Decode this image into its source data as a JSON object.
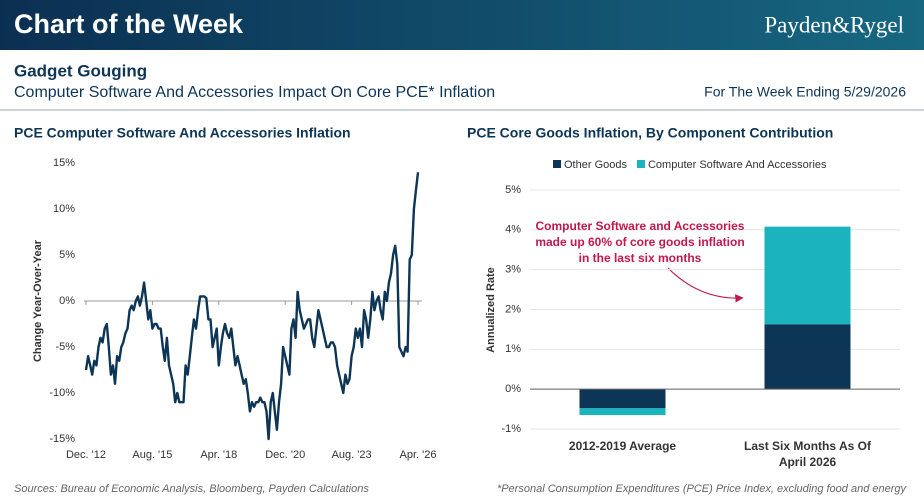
{
  "header": {
    "banner": "Chart of the Week",
    "logo": "Payden&Rygel",
    "title": "Gadget Gouging",
    "subtitle": "Computer Software And Accessories Impact On Core PCE* Inflation",
    "date_note": "For The Week Ending 5/29/2026"
  },
  "footer": {
    "sources": "Sources: Bureau of Economic Analysis, Bloomberg, Payden Calculations",
    "footnote": "*Personal Consumption Expenditures (PCE) Price Index, excluding food and energy"
  },
  "chart_data": [
    {
      "type": "line",
      "title": "PCE Computer Software And Accessories Inflation",
      "y_label": "Change Year-Over-Year",
      "x": [
        "2012-12",
        "2013-01",
        "2013-02",
        "2013-03",
        "2013-04",
        "2013-05",
        "2013-06",
        "2013-07",
        "2013-08",
        "2013-09",
        "2013-10",
        "2013-11",
        "2013-12",
        "2014-01",
        "2014-02",
        "2014-03",
        "2014-04",
        "2014-05",
        "2014-06",
        "2014-07",
        "2014-08",
        "2014-09",
        "2014-10",
        "2014-11",
        "2014-12",
        "2015-01",
        "2015-02",
        "2015-03",
        "2015-04",
        "2015-05",
        "2015-06",
        "2015-07",
        "2015-08",
        "2015-09",
        "2015-10",
        "2015-11",
        "2015-12",
        "2016-01",
        "2016-02",
        "2016-03",
        "2016-04",
        "2016-05",
        "2016-06",
        "2016-07",
        "2016-08",
        "2016-09",
        "2016-10",
        "2016-11",
        "2016-12",
        "2017-01",
        "2017-02",
        "2017-03",
        "2017-04",
        "2017-05",
        "2017-06",
        "2017-07",
        "2017-08",
        "2017-09",
        "2017-10",
        "2017-11",
        "2017-12",
        "2018-01",
        "2018-02",
        "2018-03",
        "2018-04",
        "2018-05",
        "2018-06",
        "2018-07",
        "2018-08",
        "2018-09",
        "2018-10",
        "2018-11",
        "2018-12",
        "2019-01",
        "2019-02",
        "2019-03",
        "2019-04",
        "2019-05",
        "2019-06",
        "2019-07",
        "2019-08",
        "2019-09",
        "2019-10",
        "2019-11",
        "2019-12",
        "2020-01",
        "2020-02",
        "2020-03",
        "2020-04",
        "2020-05",
        "2020-06",
        "2020-07",
        "2020-08",
        "2020-09",
        "2020-10",
        "2020-11",
        "2020-12",
        "2021-01",
        "2021-02",
        "2021-03",
        "2021-04",
        "2021-05",
        "2021-06",
        "2021-07",
        "2021-08",
        "2021-09",
        "2021-10",
        "2021-11",
        "2021-12",
        "2022-01",
        "2022-02",
        "2022-03",
        "2022-04",
        "2022-05",
        "2022-06",
        "2022-07",
        "2022-08",
        "2022-09",
        "2022-10",
        "2022-11",
        "2022-12",
        "2023-01",
        "2023-02",
        "2023-03",
        "2023-04",
        "2023-05",
        "2023-06",
        "2023-07",
        "2023-08",
        "2023-09",
        "2023-10",
        "2023-11",
        "2023-12",
        "2024-01",
        "2024-02",
        "2024-03",
        "2024-04",
        "2024-05",
        "2024-06",
        "2024-07",
        "2024-08",
        "2024-09",
        "2024-10",
        "2024-11",
        "2024-12",
        "2025-01",
        "2025-02",
        "2025-03",
        "2025-04",
        "2025-05",
        "2025-06",
        "2025-07",
        "2025-08",
        "2025-09",
        "2025-10",
        "2025-11",
        "2025-12",
        "2026-01",
        "2026-02",
        "2026-03",
        "2026-04"
      ],
      "series": [
        {
          "color": "#0d3556",
          "values": [
            -7.5,
            -6,
            -7,
            -8,
            -6.5,
            -7,
            -5,
            -4,
            -4.5,
            -3,
            -2.5,
            -5,
            -8,
            -7,
            -9,
            -6,
            -6.5,
            -5,
            -4.5,
            -3.5,
            -3,
            -1,
            -0.5,
            -1,
            0,
            0.5,
            -0.5,
            0.5,
            2,
            0,
            -2,
            -1,
            -3,
            -2.5,
            -2.5,
            -3,
            -3,
            -5,
            -6.5,
            -4,
            -7,
            -8,
            -9,
            -11,
            -10,
            -11,
            -11,
            -11,
            -7,
            -8,
            -6,
            -4,
            -2,
            -3,
            -1,
            0.5,
            0.5,
            0.5,
            0.3,
            -2,
            -2,
            -5,
            -4,
            -3,
            -7,
            -5,
            -3.5,
            -2.5,
            -3.5,
            -4,
            -3,
            -5,
            -7,
            -6,
            -7,
            -8,
            -9,
            -8.5,
            -10,
            -12,
            -11,
            -11.5,
            -11,
            -11,
            -10.5,
            -11,
            -11,
            -12,
            -15,
            -11,
            -10,
            -12,
            -14,
            -11,
            -9,
            -5,
            -6,
            -7,
            -8,
            -3,
            -2,
            -4,
            1,
            -1,
            -2,
            -3,
            -2.5,
            -2,
            -2,
            -4,
            -5,
            -3,
            -1,
            -2,
            -3,
            -4,
            -5,
            -5,
            -4.5,
            -4.5,
            -5,
            -7,
            -8,
            -9,
            -10,
            -8,
            -9,
            -8.5,
            -6,
            -5,
            -3,
            -4,
            -3,
            -5,
            -1,
            -2,
            -4,
            -2,
            1,
            -1,
            0,
            0.5,
            -1,
            -2,
            1,
            0,
            2,
            3,
            5,
            6,
            4,
            -5,
            -5.5,
            -6,
            -5,
            -5.5,
            4.5,
            5,
            10,
            12,
            14
          ]
        }
      ],
      "xticks": [
        {
          "value": "2012-12",
          "label": "Dec. '12"
        },
        {
          "value": "2015-08",
          "label": "Aug. '15"
        },
        {
          "value": "2018-04",
          "label": "Apr. '18"
        },
        {
          "value": "2020-12",
          "label": "Dec. '20"
        },
        {
          "value": "2023-08",
          "label": "Aug. '23"
        },
        {
          "value": "2026-04",
          "label": "Apr. '26"
        }
      ],
      "ylim": [
        -15,
        15
      ],
      "yticks": [
        {
          "value": -15,
          "label": "-15%"
        },
        {
          "value": -10,
          "label": "-10%"
        },
        {
          "value": -5,
          "label": "-5%"
        },
        {
          "value": 0,
          "label": "0%"
        },
        {
          "value": 5,
          "label": "5%"
        },
        {
          "value": 10,
          "label": "10%"
        },
        {
          "value": 15,
          "label": "15%"
        }
      ],
      "grid": false
    },
    {
      "type": "stacked_bar",
      "title": "PCE Core Goods Inflation, By Component Contribution",
      "y_label": "Annualized Rate",
      "annotation": "Computer Software and Accessories made up 60% of core goods inflation in the last six months",
      "categories": [
        "2012-2019 Average",
        "Last Six Months As Of April 2026"
      ],
      "series": [
        {
          "name": "Other Goods",
          "color": "#0d3556",
          "values": [
            -0.48,
            1.63
          ]
        },
        {
          "name": "Computer Software And Accessories",
          "color": "#1bb3bd",
          "values": [
            -0.17,
            2.45
          ]
        }
      ],
      "ylim": [
        -1,
        5
      ],
      "yticks": [
        {
          "value": -1,
          "label": "-1%"
        },
        {
          "value": 0,
          "label": "0%"
        },
        {
          "value": 1,
          "label": "1%"
        },
        {
          "value": 2,
          "label": "2%"
        },
        {
          "value": 3,
          "label": "3%"
        },
        {
          "value": 4,
          "label": "4%"
        },
        {
          "value": 5,
          "label": "5%"
        }
      ],
      "grid": true,
      "legend": "top"
    }
  ]
}
